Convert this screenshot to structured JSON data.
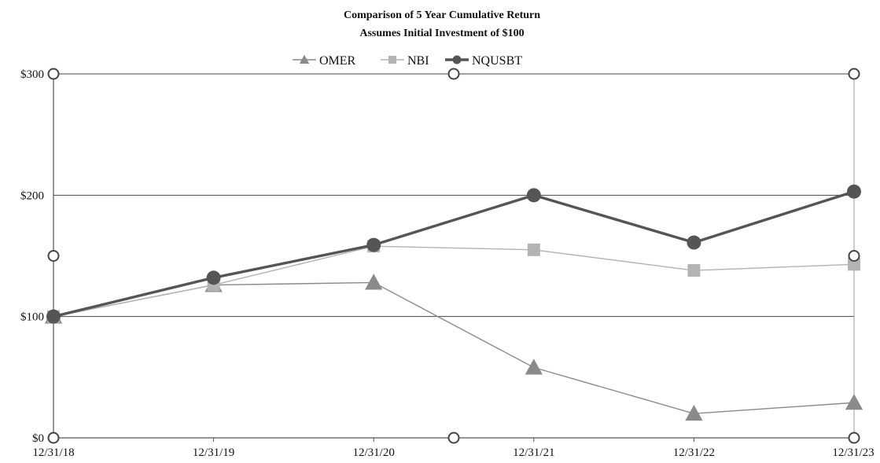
{
  "chart_data": {
    "type": "line",
    "title": "Comparison of 5 Year Cumulative Return",
    "subtitle": "Assumes Initial Investment of $100",
    "xlabel": "",
    "ylabel": "",
    "categories": [
      "12/31/18",
      "12/31/19",
      "12/31/20",
      "12/31/21",
      "12/31/22",
      "12/31/23"
    ],
    "y_ticks": [
      0,
      100,
      200,
      300
    ],
    "y_tick_labels": [
      "$0",
      "$100",
      "$200",
      "$300"
    ],
    "ylim": [
      0,
      300
    ],
    "grid": "horizontal",
    "legend_position": "top",
    "series": [
      {
        "name": "OMER",
        "marker": "triangle",
        "color": "#8a8a8a",
        "values": [
          100,
          126,
          128,
          58,
          20,
          29
        ]
      },
      {
        "name": "NBI",
        "marker": "square",
        "color": "#b3b3b3",
        "values": [
          100,
          126,
          158,
          155,
          138,
          143
        ]
      },
      {
        "name": "NQUSBT",
        "marker": "circle",
        "color": "#555555",
        "values": [
          100,
          132,
          159,
          200,
          161,
          203
        ]
      }
    ]
  }
}
